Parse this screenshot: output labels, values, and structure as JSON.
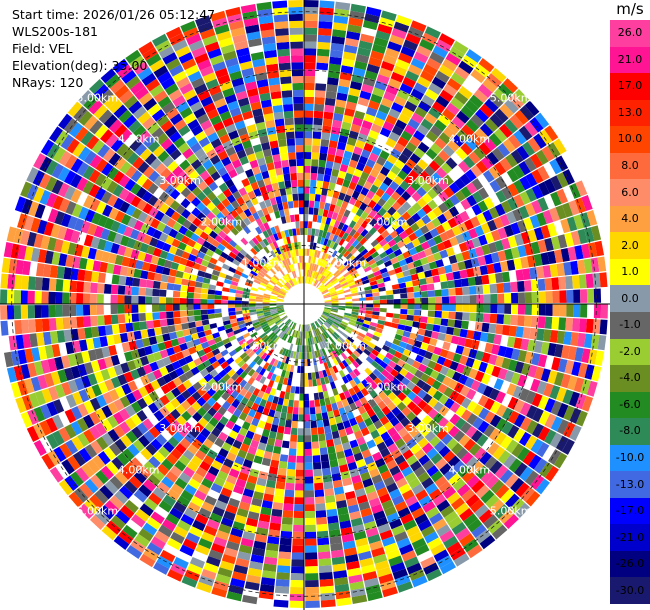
{
  "info": {
    "start_time": "Start time: 2026/01/26 05:12:47",
    "station": "WLS200s-181",
    "field": "Field: VEL",
    "elevation": "Elevation(deg): 35.00",
    "nrays": "NRays: 120"
  },
  "colorbar": {
    "unit": "m/s",
    "labels": [
      "26.0",
      "21.0",
      "17.0",
      "13.0",
      "10.0",
      "8.0",
      "6.0",
      "4.0",
      "2.0",
      "1.0",
      "0.0",
      "-1.0",
      "-2.0",
      "-4.0",
      "-6.0",
      "-8.0",
      "-10.0",
      "-13.0",
      "-17.0",
      "-21.0",
      "-26.0",
      "-30.0"
    ],
    "colors": [
      "#ff3fa0",
      "#ff1493",
      "#ff0000",
      "#ff2200",
      "#ff4500",
      "#ff6a3c",
      "#ff8c69",
      "#ffa040",
      "#ffd700",
      "#ffff00",
      "#8899aa",
      "#666666",
      "#9acd32",
      "#6b8e23",
      "#228b22",
      "#2e8b57",
      "#1e90ff",
      "#4169e1",
      "#0000ff",
      "#0000cd",
      "#000080",
      "#191970"
    ]
  },
  "chart_data": {
    "type": "heatmap",
    "projection": "polar PPI",
    "field": "VEL",
    "unit": "m/s",
    "nrays": 120,
    "range_rings_km": [
      1.0,
      2.0,
      3.0,
      4.0,
      5.0
    ],
    "ring_labels": [
      "1.00km",
      "2.00km",
      "3.00km",
      "4.00km",
      "5.00km"
    ],
    "color_range": [
      -30.0,
      26.0
    ]
  }
}
